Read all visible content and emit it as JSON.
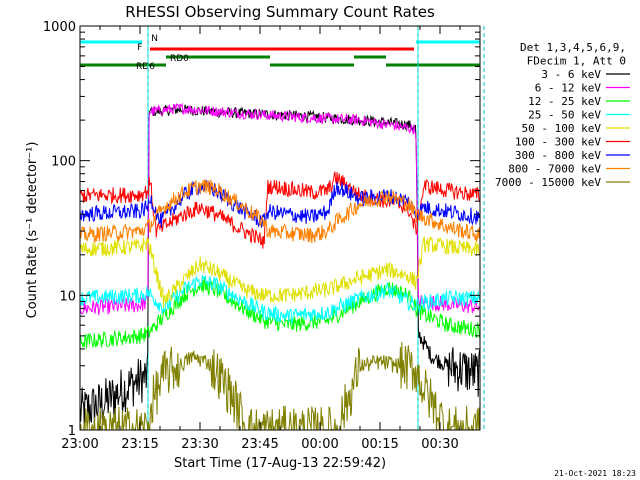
{
  "chart_data": {
    "type": "line",
    "title": "RHESSI Observing Summary Count Rates",
    "xlabel": "Start Time (17-Aug-13 22:59:42)",
    "ylabel": "Count Rate (s⁻¹ detector⁻¹)",
    "y_scale": "log",
    "ylim": [
      1,
      1000
    ],
    "xlim_minutes": [
      0,
      100
    ],
    "x_ticks": [
      "23:00",
      "23:15",
      "23:30",
      "23:45",
      "00:00",
      "00:15",
      "00:30"
    ],
    "y_ticks": [
      "1",
      "10",
      "100",
      "1000"
    ],
    "footer_date": "21-Oct-2021 18:23",
    "legend_placement": "right",
    "legend_header": [
      "Det 1,3,4,5,6,9,",
      "FDecim 1, Att 0"
    ],
    "flags": [
      {
        "label": "N",
        "color": "#00ffff",
        "segments": [
          [
            0,
            15.5
          ],
          [
            84,
            100
          ]
        ]
      },
      {
        "label": "F",
        "color": "#ff0000",
        "segments": [
          [
            17.5,
            83.5
          ]
        ]
      },
      {
        "label": "RD0",
        "color": "#008000",
        "segments": [
          [
            21.5,
            47.5
          ],
          [
            68.5,
            76.5
          ]
        ]
      },
      {
        "label": "RD6",
        "color": "#008000",
        "segments": [
          [
            0,
            21.5
          ],
          [
            47.5,
            68.5
          ],
          [
            76.5,
            100
          ]
        ]
      }
    ],
    "vlines": [
      {
        "x": 17,
        "color": "#00ffff",
        "style": "solid"
      },
      {
        "x": 84.5,
        "color": "#00ffff",
        "style": "solid"
      },
      {
        "x": 17,
        "color": "#00c0c0",
        "style": "dashed"
      },
      {
        "x": 84.5,
        "color": "#00c0c0",
        "style": "dashed"
      },
      {
        "x": 101,
        "color": "#00c0c0",
        "style": "dashed"
      }
    ],
    "series": [
      {
        "name": "3 - 6 keV",
        "color": "#000000",
        "points": [
          [
            0,
            1.35
          ],
          [
            6,
            1.6
          ],
          [
            13,
            2.2
          ],
          [
            17,
            2.5
          ],
          [
            17.2,
            230
          ],
          [
            25,
            240
          ],
          [
            40,
            225
          ],
          [
            55,
            215
          ],
          [
            70,
            200
          ],
          [
            82,
            185
          ],
          [
            84,
            175
          ],
          [
            84.6,
            5.2
          ],
          [
            88,
            3.5
          ],
          [
            92,
            3.0
          ],
          [
            100,
            2.6
          ]
        ]
      },
      {
        "name": "6 - 12 keV",
        "color": "#ff00ff",
        "points": [
          [
            0,
            8.0
          ],
          [
            15,
            8.5
          ],
          [
            17,
            9.0
          ],
          [
            17.2,
            230
          ],
          [
            25,
            245
          ],
          [
            40,
            225
          ],
          [
            55,
            210
          ],
          [
            70,
            200
          ],
          [
            82,
            175
          ],
          [
            84,
            170
          ],
          [
            84.6,
            9.0
          ],
          [
            100,
            8.2
          ]
        ]
      },
      {
        "name": "12 - 25 keV",
        "color": "#00ff00",
        "points": [
          [
            0,
            4.5
          ],
          [
            15,
            5.0
          ],
          [
            17,
            5.2
          ],
          [
            21,
            7.0
          ],
          [
            26,
            10.0
          ],
          [
            30,
            12.0
          ],
          [
            34,
            11.0
          ],
          [
            41,
            8.0
          ],
          [
            46,
            6.5
          ],
          [
            52,
            6.0
          ],
          [
            62,
            6.5
          ],
          [
            70,
            9.0
          ],
          [
            77,
            11.5
          ],
          [
            82,
            10.0
          ],
          [
            84,
            8.0
          ],
          [
            86,
            7.2
          ],
          [
            92,
            6.0
          ],
          [
            100,
            5.5
          ]
        ]
      },
      {
        "name": "25 - 50 keV",
        "color": "#00ffff",
        "points": [
          [
            0,
            9.5
          ],
          [
            15,
            10.0
          ],
          [
            17,
            10.5
          ],
          [
            21,
            8.0
          ],
          [
            26,
            11.0
          ],
          [
            30,
            13.0
          ],
          [
            34,
            12.0
          ],
          [
            41,
            9.0
          ],
          [
            46,
            7.5
          ],
          [
            52,
            7.0
          ],
          [
            62,
            7.5
          ],
          [
            70,
            9.5
          ],
          [
            77,
            11.0
          ],
          [
            82,
            9.0
          ],
          [
            84,
            8.5
          ],
          [
            86,
            8.8
          ],
          [
            92,
            9.5
          ],
          [
            100,
            9.5
          ]
        ]
      },
      {
        "name": "50 - 100 keV",
        "color": "#e0e000",
        "points": [
          [
            0,
            22.0
          ],
          [
            15,
            23.0
          ],
          [
            17,
            25.0
          ],
          [
            21,
            9.0
          ],
          [
            26,
            13.0
          ],
          [
            30,
            17.0
          ],
          [
            34,
            15.0
          ],
          [
            41,
            11.0
          ],
          [
            46,
            10.0
          ],
          [
            52,
            10.0
          ],
          [
            62,
            11.0
          ],
          [
            70,
            13.5
          ],
          [
            77,
            15.5
          ],
          [
            82,
            14.0
          ],
          [
            84,
            12.5
          ],
          [
            86,
            24.0
          ],
          [
            92,
            23.0
          ],
          [
            100,
            21.5
          ]
        ]
      },
      {
        "name": "100 - 300 keV",
        "color": "#ff0000",
        "points": [
          [
            0,
            55.0
          ],
          [
            15,
            56.0
          ],
          [
            17,
            60.0
          ],
          [
            17.5,
            72.0
          ],
          [
            19,
            30.0
          ],
          [
            26,
            40.0
          ],
          [
            30,
            45.0
          ],
          [
            34,
            40.0
          ],
          [
            41,
            30.0
          ],
          [
            46,
            25.0
          ],
          [
            47,
            65.0
          ],
          [
            52,
            62.0
          ],
          [
            58,
            58.0
          ],
          [
            62,
            60.0
          ],
          [
            64,
            75.0
          ],
          [
            70,
            55.0
          ],
          [
            77,
            50.0
          ],
          [
            82,
            45.0
          ],
          [
            84,
            30.0
          ],
          [
            86,
            65.0
          ],
          [
            92,
            60.0
          ],
          [
            100,
            55.0
          ]
        ]
      },
      {
        "name": "300 - 800 keV",
        "color": "#0000ff",
        "points": [
          [
            0,
            40.0
          ],
          [
            15,
            42.0
          ],
          [
            17,
            45.0
          ],
          [
            17.5,
            55.0
          ],
          [
            20,
            35.0
          ],
          [
            26,
            55.0
          ],
          [
            30,
            65.0
          ],
          [
            34,
            60.0
          ],
          [
            41,
            42.0
          ],
          [
            46,
            35.0
          ],
          [
            47,
            42.0
          ],
          [
            52,
            40.0
          ],
          [
            58,
            38.0
          ],
          [
            62,
            42.0
          ],
          [
            64,
            65.0
          ],
          [
            70,
            52.0
          ],
          [
            77,
            55.0
          ],
          [
            82,
            50.0
          ],
          [
            84,
            40.0
          ],
          [
            86,
            45.0
          ],
          [
            92,
            42.0
          ],
          [
            100,
            38.0
          ]
        ]
      },
      {
        "name": "800 - 7000 keV",
        "color": "#ff8000",
        "points": [
          [
            0,
            28.0
          ],
          [
            15,
            30.0
          ],
          [
            17,
            32.0
          ],
          [
            21,
            45.0
          ],
          [
            26,
            58.0
          ],
          [
            30,
            65.0
          ],
          [
            34,
            62.0
          ],
          [
            41,
            45.0
          ],
          [
            46,
            35.0
          ],
          [
            47,
            30.0
          ],
          [
            52,
            29.0
          ],
          [
            58,
            28.0
          ],
          [
            62,
            30.0
          ],
          [
            64,
            35.0
          ],
          [
            70,
            48.0
          ],
          [
            77,
            55.0
          ],
          [
            82,
            48.0
          ],
          [
            84,
            40.0
          ],
          [
            86,
            38.0
          ],
          [
            92,
            32.0
          ],
          [
            100,
            28.0
          ]
        ]
      },
      {
        "name": "7000 - 15000 keV",
        "color": "#808000",
        "points": [
          [
            0,
            1.0
          ],
          [
            17,
            1.0
          ],
          [
            18,
            1.6
          ],
          [
            21,
            2.6
          ],
          [
            25,
            3.0
          ],
          [
            28,
            3.5
          ],
          [
            32,
            3.2
          ],
          [
            35,
            2.5
          ],
          [
            38,
            1.8
          ],
          [
            42,
            1.0
          ],
          [
            64,
            1.0
          ],
          [
            68,
            2.0
          ],
          [
            70,
            3.0
          ],
          [
            75,
            3.2
          ],
          [
            80,
            3.0
          ],
          [
            84,
            2.8
          ],
          [
            86,
            2.0
          ],
          [
            88,
            1.6
          ],
          [
            92,
            1.0
          ],
          [
            100,
            1.0
          ]
        ]
      }
    ]
  }
}
